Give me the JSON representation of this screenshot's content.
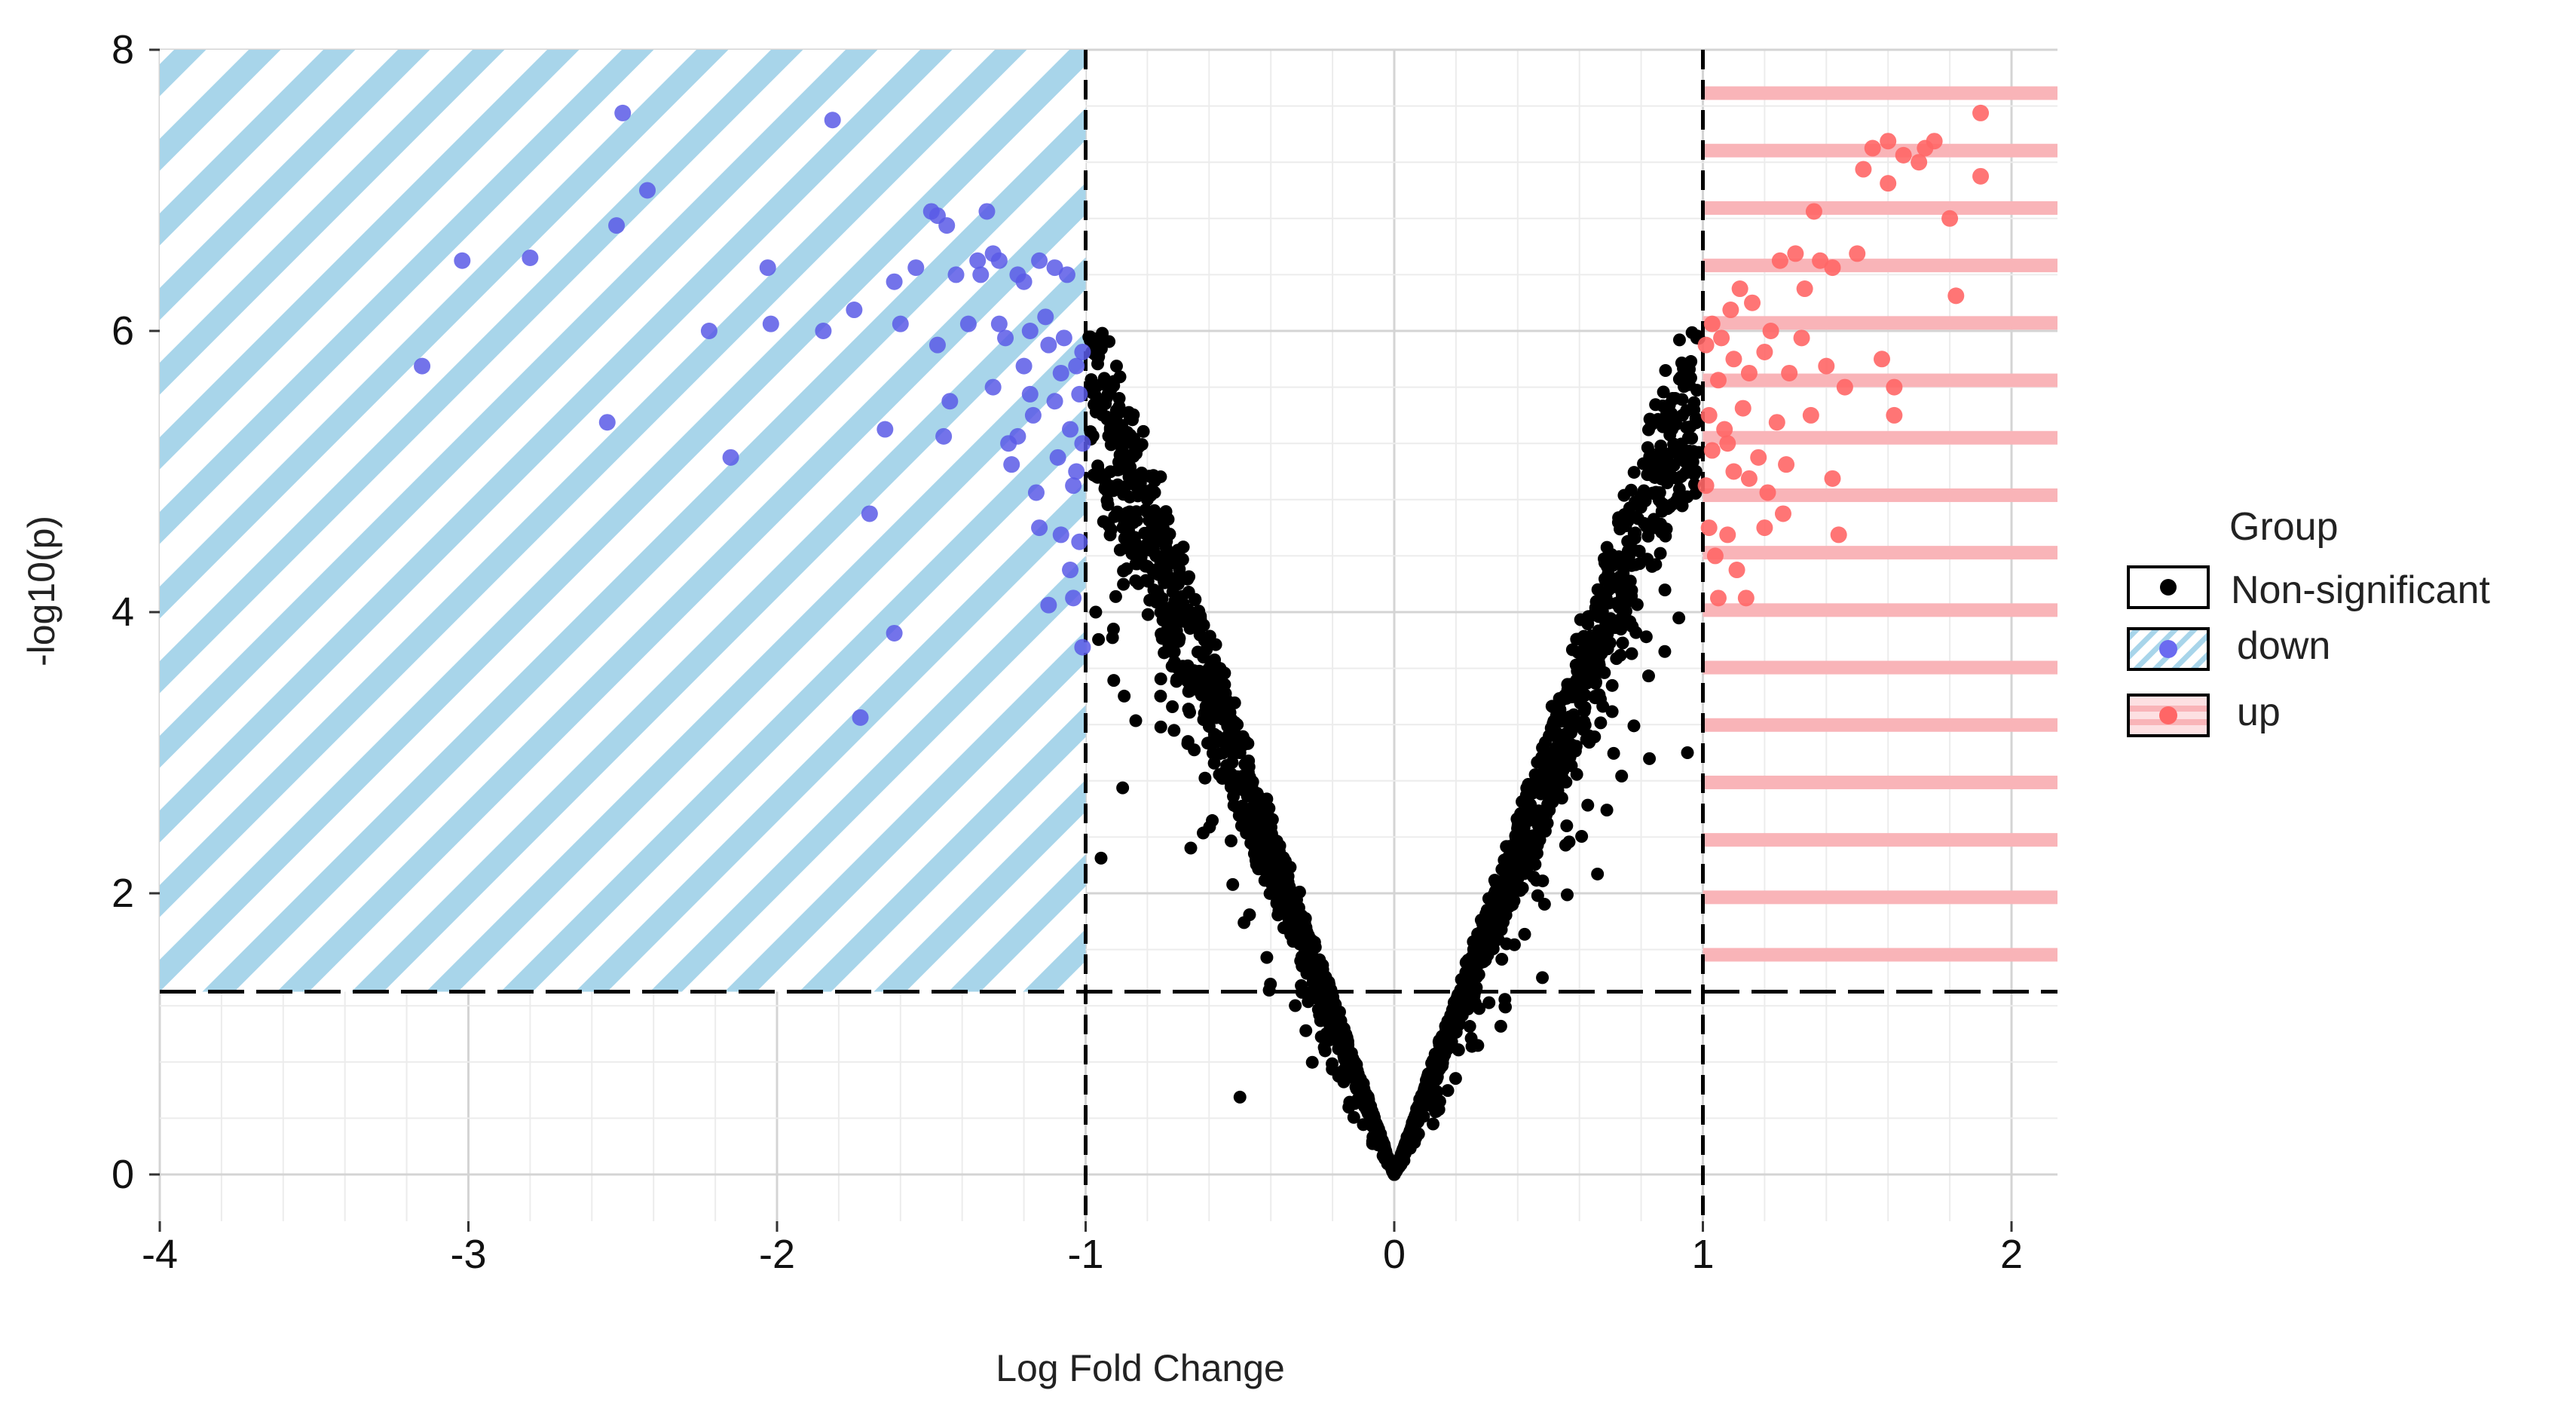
{
  "chart_data": {
    "type": "scatter",
    "title": "",
    "xlabel": "Log Fold Change",
    "ylabel": "-log10(p)",
    "xlim": [
      -4,
      2.15
    ],
    "ylim": [
      -0.3,
      8
    ],
    "x_ticks": [
      -4,
      -3,
      -2,
      -1,
      0,
      1,
      2
    ],
    "x_tick_labels": [
      "-4",
      "-3",
      "-2",
      "-1",
      "0",
      "1",
      "2"
    ],
    "y_ticks": [
      0,
      2,
      4,
      6,
      8
    ],
    "y_tick_labels": [
      "0",
      "2",
      "4",
      "6",
      "8"
    ],
    "grid": true,
    "thresholds": {
      "log_fold_change": [
        -1,
        1
      ],
      "neg_log10_p": 1.3
    },
    "legend": {
      "title": "Group",
      "position": "right",
      "entries": [
        {
          "label": "Non-significant",
          "color": "#000000",
          "pattern": "none"
        },
        {
          "label": "down",
          "color": "#5a5ae6",
          "pattern": "diagonal-stripes",
          "pattern_color": "#a8d5ea"
        },
        {
          "label": "up",
          "color": "#ff6666",
          "pattern": "horizontal-stripes",
          "pattern_color": "#f9b4b8"
        }
      ]
    },
    "series": [
      {
        "name": "down",
        "color": "#5a5ae6",
        "points": [
          [
            -3.15,
            5.75
          ],
          [
            -3.02,
            6.5
          ],
          [
            -2.8,
            6.52
          ],
          [
            -2.55,
            5.35
          ],
          [
            -2.52,
            6.75
          ],
          [
            -2.5,
            7.55
          ],
          [
            -2.42,
            7.0
          ],
          [
            -2.22,
            6.0
          ],
          [
            -2.15,
            5.1
          ],
          [
            -2.03,
            6.45
          ],
          [
            -2.02,
            6.05
          ],
          [
            -1.82,
            7.5
          ],
          [
            -1.85,
            6.0
          ],
          [
            -1.75,
            6.15
          ],
          [
            -1.73,
            3.25
          ],
          [
            -1.7,
            4.7
          ],
          [
            -1.65,
            5.3
          ],
          [
            -1.62,
            3.85
          ],
          [
            -1.62,
            6.35
          ],
          [
            -1.6,
            6.05
          ],
          [
            -1.55,
            6.45
          ],
          [
            -1.5,
            6.85
          ],
          [
            -1.48,
            6.82
          ],
          [
            -1.45,
            6.75
          ],
          [
            -1.48,
            5.9
          ],
          [
            -1.46,
            5.25
          ],
          [
            -1.44,
            5.5
          ],
          [
            -1.42,
            6.4
          ],
          [
            -1.38,
            6.05
          ],
          [
            -1.35,
            6.5
          ],
          [
            -1.34,
            6.4
          ],
          [
            -1.32,
            6.85
          ],
          [
            -1.3,
            6.55
          ],
          [
            -1.28,
            6.5
          ],
          [
            -1.3,
            5.6
          ],
          [
            -1.26,
            5.95
          ],
          [
            -1.25,
            5.2
          ],
          [
            -1.24,
            5.05
          ],
          [
            -1.22,
            6.4
          ],
          [
            -1.2,
            6.35
          ],
          [
            -1.2,
            5.75
          ],
          [
            -1.18,
            6.0
          ],
          [
            -1.17,
            5.4
          ],
          [
            -1.16,
            4.85
          ],
          [
            -1.15,
            6.5
          ],
          [
            -1.13,
            6.1
          ],
          [
            -1.12,
            5.9
          ],
          [
            -1.12,
            4.05
          ],
          [
            -1.1,
            5.5
          ],
          [
            -1.09,
            5.1
          ],
          [
            -1.08,
            4.55
          ],
          [
            -1.07,
            5.95
          ],
          [
            -1.06,
            6.4
          ],
          [
            -1.05,
            5.3
          ],
          [
            -1.05,
            4.3
          ],
          [
            -1.04,
            4.1
          ],
          [
            -1.04,
            4.9
          ],
          [
            -1.03,
            5.75
          ],
          [
            -1.03,
            5.0
          ],
          [
            -1.02,
            5.55
          ],
          [
            -1.02,
            4.5
          ],
          [
            -1.01,
            3.75
          ],
          [
            -1.01,
            5.85
          ],
          [
            -1.01,
            5.2
          ],
          [
            -1.1,
            6.45
          ],
          [
            -1.18,
            5.55
          ],
          [
            -1.22,
            5.25
          ],
          [
            -1.28,
            6.05
          ],
          [
            -1.15,
            4.6
          ],
          [
            -1.08,
            5.7
          ]
        ]
      },
      {
        "name": "up",
        "color": "#ff6666",
        "points": [
          [
            1.01,
            5.9
          ],
          [
            1.01,
            4.9
          ],
          [
            1.02,
            5.4
          ],
          [
            1.02,
            4.6
          ],
          [
            1.03,
            6.05
          ],
          [
            1.03,
            5.15
          ],
          [
            1.04,
            4.4
          ],
          [
            1.05,
            5.65
          ],
          [
            1.05,
            4.1
          ],
          [
            1.06,
            5.95
          ],
          [
            1.07,
            5.3
          ],
          [
            1.08,
            4.55
          ],
          [
            1.09,
            6.15
          ],
          [
            1.1,
            5.0
          ],
          [
            1.1,
            5.8
          ],
          [
            1.11,
            4.3
          ],
          [
            1.12,
            6.3
          ],
          [
            1.13,
            5.45
          ],
          [
            1.14,
            4.1
          ],
          [
            1.15,
            5.7
          ],
          [
            1.16,
            6.2
          ],
          [
            1.18,
            5.1
          ],
          [
            1.2,
            5.85
          ],
          [
            1.21,
            4.85
          ],
          [
            1.22,
            6.0
          ],
          [
            1.24,
            5.35
          ],
          [
            1.25,
            6.5
          ],
          [
            1.27,
            5.05
          ],
          [
            1.28,
            5.7
          ],
          [
            1.3,
            6.55
          ],
          [
            1.32,
            5.95
          ],
          [
            1.33,
            6.3
          ],
          [
            1.35,
            5.4
          ],
          [
            1.36,
            6.85
          ],
          [
            1.38,
            6.5
          ],
          [
            1.4,
            5.75
          ],
          [
            1.42,
            6.45
          ],
          [
            1.42,
            4.95
          ],
          [
            1.44,
            4.55
          ],
          [
            1.46,
            5.6
          ],
          [
            1.5,
            6.55
          ],
          [
            1.52,
            7.15
          ],
          [
            1.55,
            7.3
          ],
          [
            1.58,
            5.8
          ],
          [
            1.6,
            7.35
          ],
          [
            1.6,
            7.05
          ],
          [
            1.62,
            5.6
          ],
          [
            1.65,
            7.25
          ],
          [
            1.7,
            7.2
          ],
          [
            1.72,
            7.3
          ],
          [
            1.75,
            7.35
          ],
          [
            1.8,
            6.8
          ],
          [
            1.82,
            6.25
          ],
          [
            1.9,
            7.55
          ],
          [
            1.9,
            7.1
          ],
          [
            1.62,
            5.4
          ],
          [
            1.2,
            4.6
          ],
          [
            1.08,
            5.2
          ],
          [
            1.15,
            4.95
          ],
          [
            1.26,
            4.7
          ]
        ]
      },
      {
        "name": "Non-significant",
        "color": "#000000",
        "generated": "volcano-cloud",
        "sample_points": [
          [
            -0.98,
            5.85
          ],
          [
            -0.95,
            5.5
          ],
          [
            -0.9,
            5.75
          ],
          [
            -0.85,
            5.2
          ],
          [
            -0.8,
            4.8
          ],
          [
            -0.75,
            4.5
          ],
          [
            -0.7,
            4.2
          ],
          [
            -0.6,
            3.6
          ],
          [
            -0.5,
            3.0
          ],
          [
            -0.4,
            2.4
          ],
          [
            -0.3,
            1.8
          ],
          [
            -0.2,
            1.2
          ],
          [
            -0.1,
            0.6
          ],
          [
            0.0,
            0.0
          ],
          [
            0.1,
            0.6
          ],
          [
            0.2,
            1.2
          ],
          [
            0.3,
            1.8
          ],
          [
            0.4,
            2.4
          ],
          [
            0.5,
            3.0
          ],
          [
            0.6,
            3.6
          ],
          [
            0.7,
            4.2
          ],
          [
            0.8,
            4.8
          ],
          [
            0.9,
            5.3
          ],
          [
            0.98,
            5.95
          ],
          [
            -0.5,
            0.55
          ],
          [
            -0.95,
            2.25
          ],
          [
            0.95,
            3.0
          ],
          [
            -0.88,
            2.75
          ],
          [
            0.48,
            1.4
          ]
        ]
      }
    ]
  }
}
